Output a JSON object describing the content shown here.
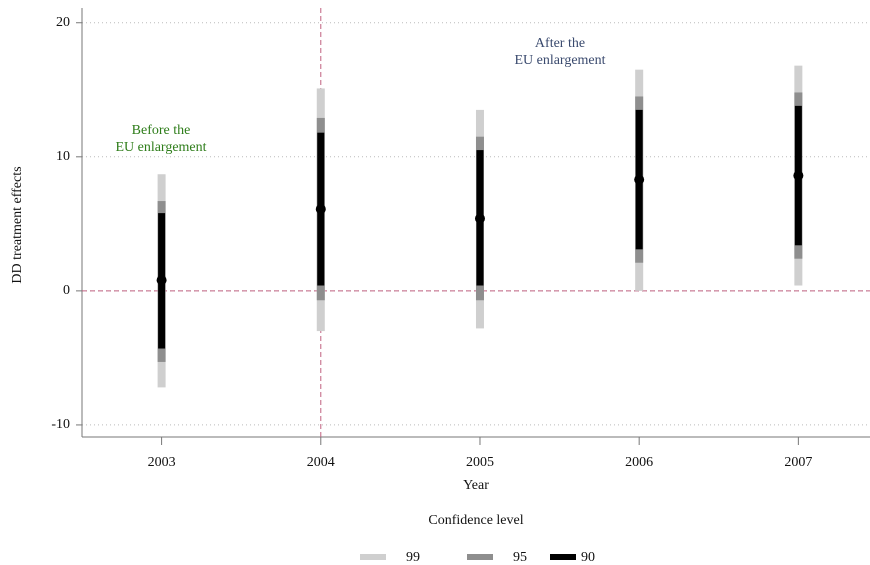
{
  "chart_data": {
    "type": "coefplot",
    "xlabel": "Year",
    "ylabel": "DD treatment effects",
    "x": [
      2003,
      2004,
      2005,
      2006,
      2007
    ],
    "xlim": [
      2002.5,
      2007.45
    ],
    "xticks": [
      2003,
      2004,
      2005,
      2006,
      2007
    ],
    "ylim": [
      -10.9,
      21.1
    ],
    "yticks": [
      -10,
      0,
      10,
      20
    ],
    "grid": true,
    "reference_lines": {
      "x": 2004,
      "y": 0,
      "color": "#c06080"
    },
    "estimates": {
      "color": "#000000",
      "values": [
        0.8,
        6.1,
        5.4,
        8.3,
        8.6
      ]
    },
    "series": [
      {
        "name": "99",
        "color": "#cfcfcf",
        "lower": [
          -7.2,
          -3.0,
          -2.8,
          0.0,
          0.4
        ],
        "upper": [
          8.7,
          15.1,
          13.5,
          16.5,
          16.8
        ]
      },
      {
        "name": "95",
        "color": "#8e8e8e",
        "lower": [
          -5.3,
          -0.7,
          -0.7,
          2.1,
          2.4
        ],
        "upper": [
          6.7,
          12.9,
          11.5,
          14.5,
          14.8
        ]
      },
      {
        "name": "90",
        "color": "#000000",
        "lower": [
          -4.3,
          0.4,
          0.4,
          3.1,
          3.4
        ],
        "upper": [
          5.8,
          11.8,
          10.5,
          13.5,
          13.8
        ]
      }
    ],
    "annotations": [
      {
        "lines": [
          "Before the",
          "EU enlargement"
        ],
        "color": "#2e7d1a"
      },
      {
        "lines": [
          "After the",
          "EU enlargement"
        ],
        "color": "#3a4a6e"
      }
    ],
    "legend_title": "Confidence level"
  }
}
